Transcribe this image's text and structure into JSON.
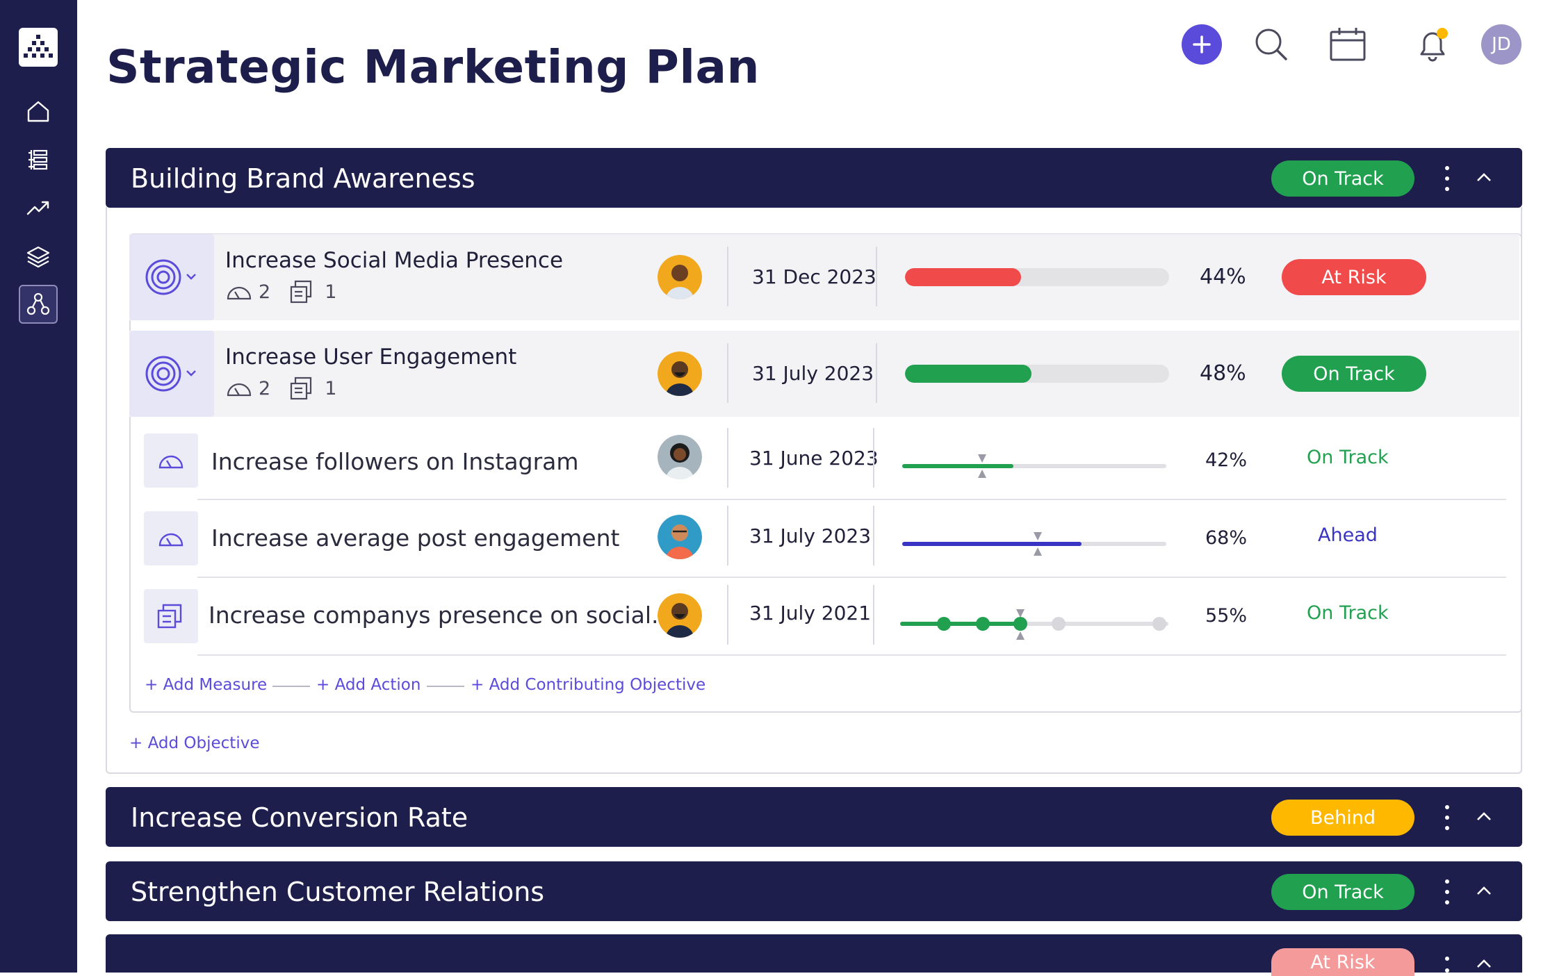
{
  "page": {
    "title": "Strategic Marketing Plan"
  },
  "sidebar": {
    "items": [
      {
        "icon": "home-icon"
      },
      {
        "icon": "list-tree-icon"
      },
      {
        "icon": "trend-up-icon"
      },
      {
        "icon": "layers-icon"
      },
      {
        "icon": "hierarchy-icon"
      }
    ]
  },
  "header": {
    "user_initials": "JD"
  },
  "colors": {
    "navy": "#1e1e4c",
    "green": "#21a150",
    "red": "#f14a4a",
    "yellow": "#ffb800",
    "purple": "#5b4bdb",
    "pink": "#f49a9a"
  },
  "sections": [
    {
      "title": "Building Brand Awareness",
      "status": "On Track"
    },
    {
      "title": "Increase Conversion Rate",
      "status": "Behind"
    },
    {
      "title": "Strengthen Customer Relations",
      "status": "On Track"
    },
    {
      "title": "",
      "status": "At Risk"
    }
  ],
  "objectives": [
    {
      "title": "Increase Social Media Presence",
      "measures": "2",
      "actions": "1",
      "date": "31 Dec 2023",
      "progress": 0.44,
      "percent": "44%",
      "status": "At Risk"
    },
    {
      "title": "Increase User Engagement",
      "measures": "2",
      "actions": "1",
      "date": "31 July 2023",
      "progress": 0.48,
      "percent": "48%",
      "status": "On Track"
    }
  ],
  "sub_items": [
    {
      "title": "Increase followers on Instagram",
      "date": "31 June 2023",
      "progress": 0.42,
      "percent": "42%",
      "status": "On Track"
    },
    {
      "title": "Increase average post engagement",
      "date": "31 July 2023",
      "progress": 0.68,
      "percent": "68%",
      "status": "Ahead"
    },
    {
      "title": "Increase companys presence on social...",
      "date": "31 July 2021",
      "progress": 0.55,
      "percent": "55%",
      "status": "On Track"
    }
  ],
  "links": {
    "add_measure": "+ Add Measure",
    "add_action": "+ Add Action",
    "add_contributing": "+ Add Contributing Objective",
    "add_objective": "+ Add Objective"
  }
}
